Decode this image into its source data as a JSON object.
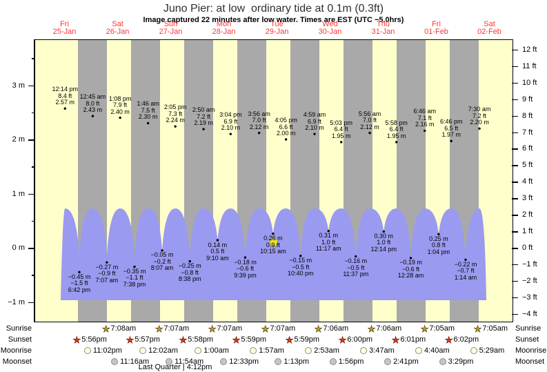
{
  "title": "Juno Pier: at low  ordinary tide at 0.1m (0.3ft)",
  "subtitle": "Image captured 22 minutes after low water. Times are EST (UTC −5.0hrs)",
  "colors": {
    "day_band": "#ffffcc",
    "night_band": "#a9a9a9",
    "water": "#9a9af0",
    "day_label_red": "#ff3333",
    "current_marker": "#e8e42c",
    "sunrise_star": "#b2a331",
    "sunset_star": "#e23b10",
    "moonrise_circle": "#ffffd8",
    "moonset_circle": "#c6c6bc"
  },
  "chart_data": {
    "type": "area",
    "days": [
      {
        "name": "Fri",
        "date": "25-Jan"
      },
      {
        "name": "Sat",
        "date": "26-Jan"
      },
      {
        "name": "Sun",
        "date": "27-Jan"
      },
      {
        "name": "Mon",
        "date": "28-Jan"
      },
      {
        "name": "Tue",
        "date": "29-Jan"
      },
      {
        "name": "Wed",
        "date": "30-Jan"
      },
      {
        "name": "Thu",
        "date": "31-Jan"
      },
      {
        "name": "Fri",
        "date": "01-Feb"
      },
      {
        "name": "Sat",
        "date": "02-Feb"
      }
    ],
    "y_left_ticks": [
      {
        "label": "3 m",
        "m": 3
      },
      {
        "label": "2 m",
        "m": 2
      },
      {
        "label": "1 m",
        "m": 1
      },
      {
        "label": "0 m",
        "m": 0
      },
      {
        "label": "-1 m",
        "m": -1
      }
    ],
    "y_right_ticks_ft": [
      12,
      11,
      10,
      9,
      8,
      7,
      6,
      5,
      4,
      3,
      2,
      1,
      0,
      -1,
      -2,
      -3,
      -4
    ],
    "tide_events": [
      {
        "day": 0,
        "time": "12:14 pm",
        "type": "high",
        "ft": "8.4",
        "m": "2.57"
      },
      {
        "day": 0,
        "time": "6:42 pm",
        "type": "low",
        "ft": "-1.5",
        "m": "-0.45"
      },
      {
        "day": 1,
        "time": "12:45 am",
        "type": "high",
        "ft": "8.0",
        "m": "2.43"
      },
      {
        "day": 1,
        "time": "7:07 am",
        "type": "low",
        "ft": "-0.9",
        "m": "-0.27"
      },
      {
        "day": 1,
        "time": "1:08 pm",
        "type": "high",
        "ft": "7.9",
        "m": "2.40"
      },
      {
        "day": 1,
        "time": "7:38 pm",
        "type": "low",
        "ft": "-1.1",
        "m": "-0.35"
      },
      {
        "day": 2,
        "time": "1:46 am",
        "type": "high",
        "ft": "7.5",
        "m": "2.30"
      },
      {
        "day": 2,
        "time": "8:07 am",
        "type": "low",
        "ft": "-0.2",
        "m": "-0.05"
      },
      {
        "day": 2,
        "time": "2:05 pm",
        "type": "high",
        "ft": "7.3",
        "m": "2.24"
      },
      {
        "day": 2,
        "time": "8:38 pm",
        "type": "low",
        "ft": "-0.8",
        "m": "-0.25"
      },
      {
        "day": 3,
        "time": "2:50 am",
        "type": "high",
        "ft": "7.2",
        "m": "2.19"
      },
      {
        "day": 3,
        "time": "9:10 am",
        "type": "low",
        "ft": "0.5",
        "m": "0.14"
      },
      {
        "day": 3,
        "time": "3:04 pm",
        "type": "high",
        "ft": "6.9",
        "m": "2.10"
      },
      {
        "day": 3,
        "time": "9:39 pm",
        "type": "low",
        "ft": "-0.6",
        "m": "-0.18"
      },
      {
        "day": 4,
        "time": "3:56 am",
        "type": "high",
        "ft": "7.0",
        "m": "2.12"
      },
      {
        "day": 4,
        "time": "10:15 am",
        "type": "low",
        "ft": "0.9",
        "m": "0.26"
      },
      {
        "day": 4,
        "time": "4:05 pm",
        "type": "high",
        "ft": "6.6",
        "m": "2.00"
      },
      {
        "day": 4,
        "time": "10:40 pm",
        "type": "low",
        "ft": "-0.5",
        "m": "-0.15"
      },
      {
        "day": 5,
        "time": "4:59 am",
        "type": "high",
        "ft": "6.9",
        "m": "2.10"
      },
      {
        "day": 5,
        "time": "11:17 am",
        "type": "low",
        "ft": "1.0",
        "m": "0.31"
      },
      {
        "day": 5,
        "time": "5:03 pm",
        "type": "high",
        "ft": "6.4",
        "m": "1.95"
      },
      {
        "day": 5,
        "time": "11:37 pm",
        "type": "low",
        "ft": "-0.5",
        "m": "-0.16"
      },
      {
        "day": 6,
        "time": "5:56 am",
        "type": "high",
        "ft": "7.0",
        "m": "2.12"
      },
      {
        "day": 6,
        "time": "12:14 pm",
        "type": "low",
        "ft": "1.0",
        "m": "0.30"
      },
      {
        "day": 6,
        "time": "5:58 pm",
        "type": "high",
        "ft": "6.4",
        "m": "1.95"
      },
      {
        "day": 7,
        "time": "12:28 am",
        "type": "low",
        "ft": "-0.6",
        "m": "-0.19"
      },
      {
        "day": 7,
        "time": "6:46 am",
        "type": "high",
        "ft": "7.1",
        "m": "2.16"
      },
      {
        "day": 7,
        "time": "1:04 pm",
        "type": "low",
        "ft": "0.8",
        "m": "0.25"
      },
      {
        "day": 7,
        "time": "6:46 pm",
        "type": "high",
        "ft": "6.5",
        "m": "1.97"
      },
      {
        "day": 8,
        "time": "1:14 am",
        "type": "low",
        "ft": "-0.7",
        "m": "-0.22"
      },
      {
        "day": 8,
        "time": "7:30 am",
        "type": "high",
        "ft": "7.2",
        "m": "2.20"
      }
    ],
    "current_marker": {
      "day": 4,
      "time": "10:37 am",
      "height_m": 0.1
    }
  },
  "almanac": {
    "rows": [
      {
        "label": "Sunrise",
        "icon": "sunrise-icon",
        "entries": [
          {
            "day": 1,
            "time": "7:08am"
          },
          {
            "day": 2,
            "time": "7:07am"
          },
          {
            "day": 3,
            "time": "7:07am"
          },
          {
            "day": 4,
            "time": "7:07am"
          },
          {
            "day": 5,
            "time": "7:06am"
          },
          {
            "day": 6,
            "time": "7:06am"
          },
          {
            "day": 7,
            "time": "7:05am"
          },
          {
            "day": 8,
            "time": "7:05am"
          }
        ]
      },
      {
        "label": "Sunset",
        "icon": "sunset-icon",
        "entries": [
          {
            "day": 0,
            "time": "5:56pm"
          },
          {
            "day": 1,
            "time": "5:57pm"
          },
          {
            "day": 2,
            "time": "5:58pm"
          },
          {
            "day": 3,
            "time": "5:59pm"
          },
          {
            "day": 4,
            "time": "5:59pm"
          },
          {
            "day": 5,
            "time": "6:00pm"
          },
          {
            "day": 6,
            "time": "6:01pm"
          },
          {
            "day": 7,
            "time": "6:02pm"
          }
        ]
      },
      {
        "label": "Moonrise",
        "icon": "moonrise-icon",
        "entries": [
          {
            "day": 0,
            "time": "11:02pm"
          },
          {
            "day": 2,
            "time": "12:02am"
          },
          {
            "day": 3,
            "time": "1:00am"
          },
          {
            "day": 4,
            "time": "1:57am"
          },
          {
            "day": 5,
            "time": "2:53am"
          },
          {
            "day": 6,
            "time": "3:47am"
          },
          {
            "day": 7,
            "time": "4:40am"
          },
          {
            "day": 8,
            "time": "5:29am"
          }
        ]
      },
      {
        "label": "Moonset",
        "icon": "moonset-icon",
        "entries": [
          {
            "day": 1,
            "time": "11:16am"
          },
          {
            "day": 2,
            "time": "11:54am"
          },
          {
            "day": 3,
            "time": "12:33pm"
          },
          {
            "day": 4,
            "time": "1:13pm"
          },
          {
            "day": 5,
            "time": "1:56pm"
          },
          {
            "day": 6,
            "time": "2:41pm"
          },
          {
            "day": 7,
            "time": "3:29pm"
          }
        ]
      }
    ],
    "footnote": "Last Quarter | 4:12pm"
  }
}
